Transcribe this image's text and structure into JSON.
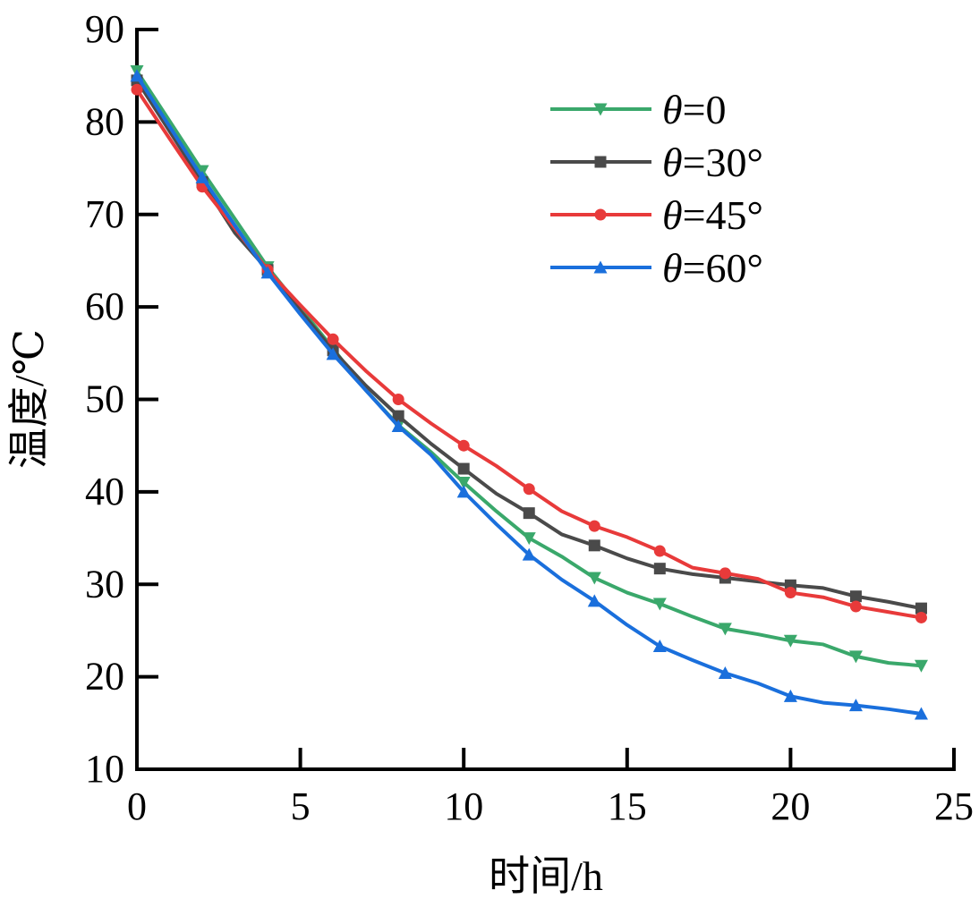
{
  "chart_data": {
    "type": "line",
    "title": "",
    "xlabel": "时间/h",
    "ylabel": "温度/℃",
    "xlim": [
      0,
      25
    ],
    "ylim": [
      10,
      90
    ],
    "xticks": [
      0,
      5,
      10,
      15,
      20,
      25
    ],
    "yticks": [
      10,
      20,
      30,
      40,
      50,
      60,
      70,
      80,
      90
    ],
    "grid": false,
    "legend_position": "top-right",
    "x": [
      0,
      1,
      2,
      3,
      4,
      5,
      6,
      7,
      8,
      9,
      10,
      11,
      12,
      13,
      14,
      15,
      16,
      17,
      18,
      19,
      20,
      21,
      22,
      23,
      24
    ],
    "marker_every": 2,
    "series": [
      {
        "name": "θ=0",
        "color": "#3aa86b",
        "marker": "triangle-down",
        "values": [
          85.5,
          80.1,
          74.7,
          69.5,
          64.3,
          59.9,
          55.5,
          51.0,
          47.2,
          44.3,
          41.0,
          37.9,
          35.0,
          33.0,
          30.7,
          29.1,
          27.9,
          26.5,
          25.2,
          24.6,
          23.9,
          23.5,
          22.2,
          21.5,
          21.2
        ]
      },
      {
        "name": "θ=30°",
        "color": "#4a4a4a",
        "marker": "square",
        "values": [
          84.5,
          79.0,
          73.5,
          68.0,
          64.0,
          59.6,
          55.3,
          51.5,
          48.2,
          45.2,
          42.5,
          39.8,
          37.7,
          35.4,
          34.2,
          32.8,
          31.7,
          31.1,
          30.7,
          30.3,
          29.9,
          29.6,
          28.7,
          28.1,
          27.4
        ]
      },
      {
        "name": "θ=45°",
        "color": "#e83a3a",
        "marker": "circle",
        "values": [
          83.5,
          78.2,
          73.0,
          68.5,
          64.0,
          60.2,
          56.5,
          53.1,
          50.0,
          47.4,
          45.0,
          42.8,
          40.3,
          37.9,
          36.3,
          35.1,
          33.6,
          31.8,
          31.2,
          30.6,
          29.1,
          28.6,
          27.6,
          27.0,
          26.4
        ]
      },
      {
        "name": "θ=60°",
        "color": "#1a6fdc",
        "marker": "triangle-up",
        "values": [
          85.0,
          79.5,
          74.0,
          68.8,
          63.7,
          59.2,
          54.9,
          51.0,
          47.1,
          44.0,
          40.0,
          36.5,
          33.2,
          30.5,
          28.2,
          25.6,
          23.3,
          21.8,
          20.4,
          19.3,
          17.9,
          17.2,
          16.9,
          16.5,
          16.0
        ]
      }
    ]
  }
}
